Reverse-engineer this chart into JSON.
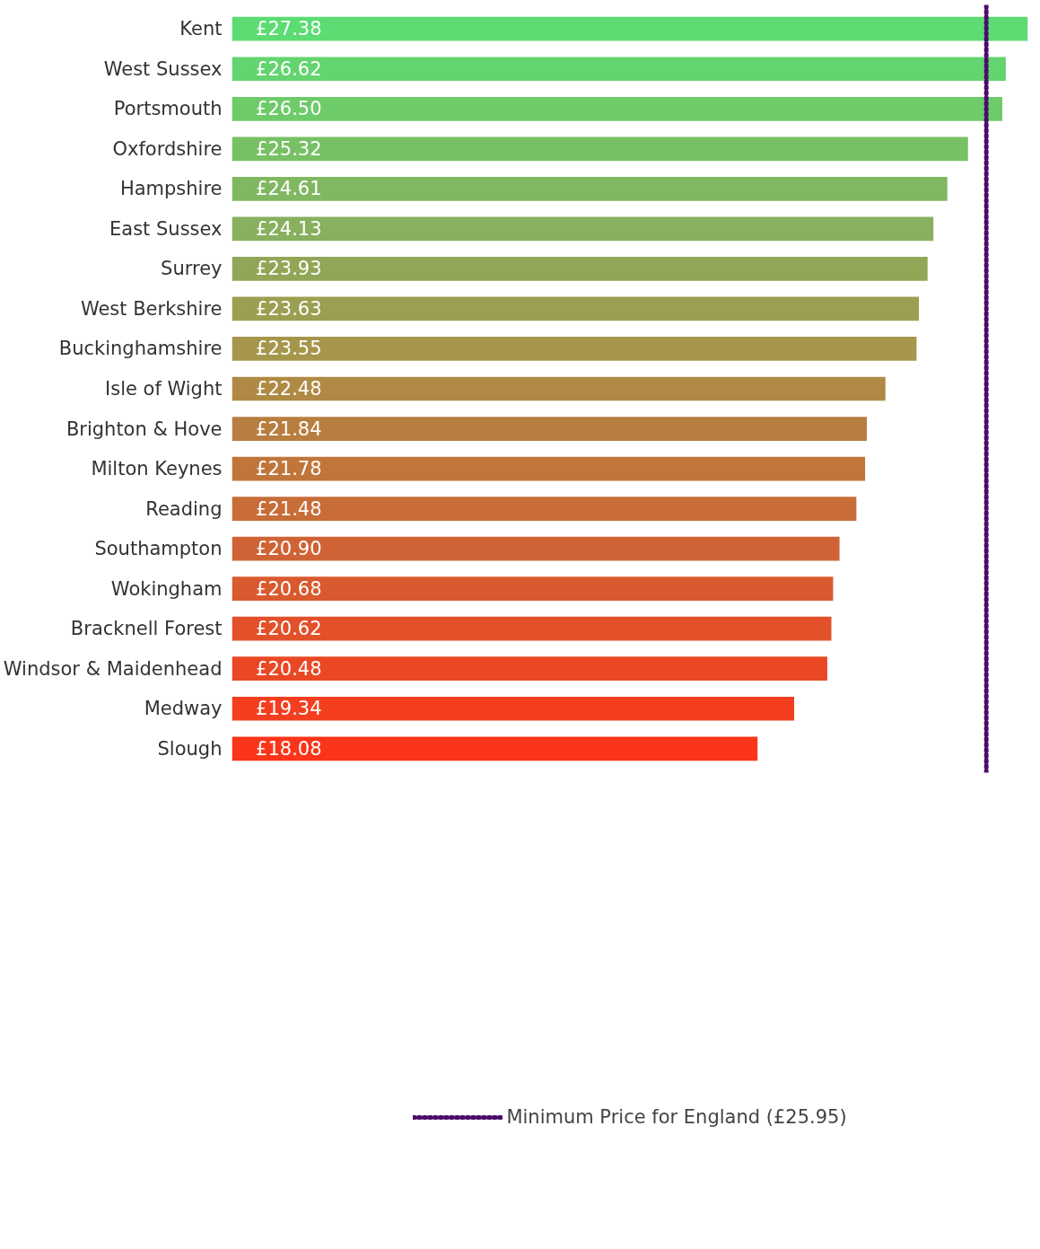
{
  "chart_data": {
    "type": "bar",
    "orientation": "horizontal",
    "categories": [
      "Kent",
      "West Sussex",
      "Portsmouth",
      "Oxfordshire",
      "Hampshire",
      "East Sussex",
      "Surrey",
      "West Berkshire",
      "Buckinghamshire",
      "Isle of Wight",
      "Brighton & Hove",
      "Milton Keynes",
      "Reading",
      "Southampton",
      "Wokingham",
      "Bracknell Forest",
      "Windsor & Maidenhead",
      "Medway",
      "Slough"
    ],
    "values": [
      27.38,
      26.62,
      26.5,
      25.32,
      24.61,
      24.13,
      23.93,
      23.63,
      23.55,
      22.48,
      21.84,
      21.78,
      21.48,
      20.9,
      20.68,
      20.62,
      20.48,
      19.34,
      18.08
    ],
    "value_labels": [
      "£27.38",
      "£26.62",
      "£26.50",
      "£25.32",
      "£24.61",
      "£24.13",
      "£23.93",
      "£23.63",
      "£23.55",
      "£22.48",
      "£21.84",
      "£21.78",
      "£21.48",
      "£20.90",
      "£20.68",
      "£20.62",
      "£20.48",
      "£19.34",
      "£18.08"
    ],
    "colors": [
      "#5cdc73",
      "#63d46f",
      "#6ecb6a",
      "#78c065",
      "#80b862",
      "#88b05e",
      "#92a657",
      "#9b9f51",
      "#a5964b",
      "#b08a45",
      "#b87e40",
      "#c0763b",
      "#c86c38",
      "#d06336",
      "#d95a2e",
      "#e2512a",
      "#ea4825",
      "#f33f1f",
      "#fa3519"
    ],
    "ref_lines": [
      {
        "axis": "x",
        "value": 25.95,
        "label": "Minimum Price for England (£25.95)",
        "color": "#4b0c6b",
        "line_style": "dotted"
      }
    ],
    "legend": "bottom",
    "grid": false
  }
}
